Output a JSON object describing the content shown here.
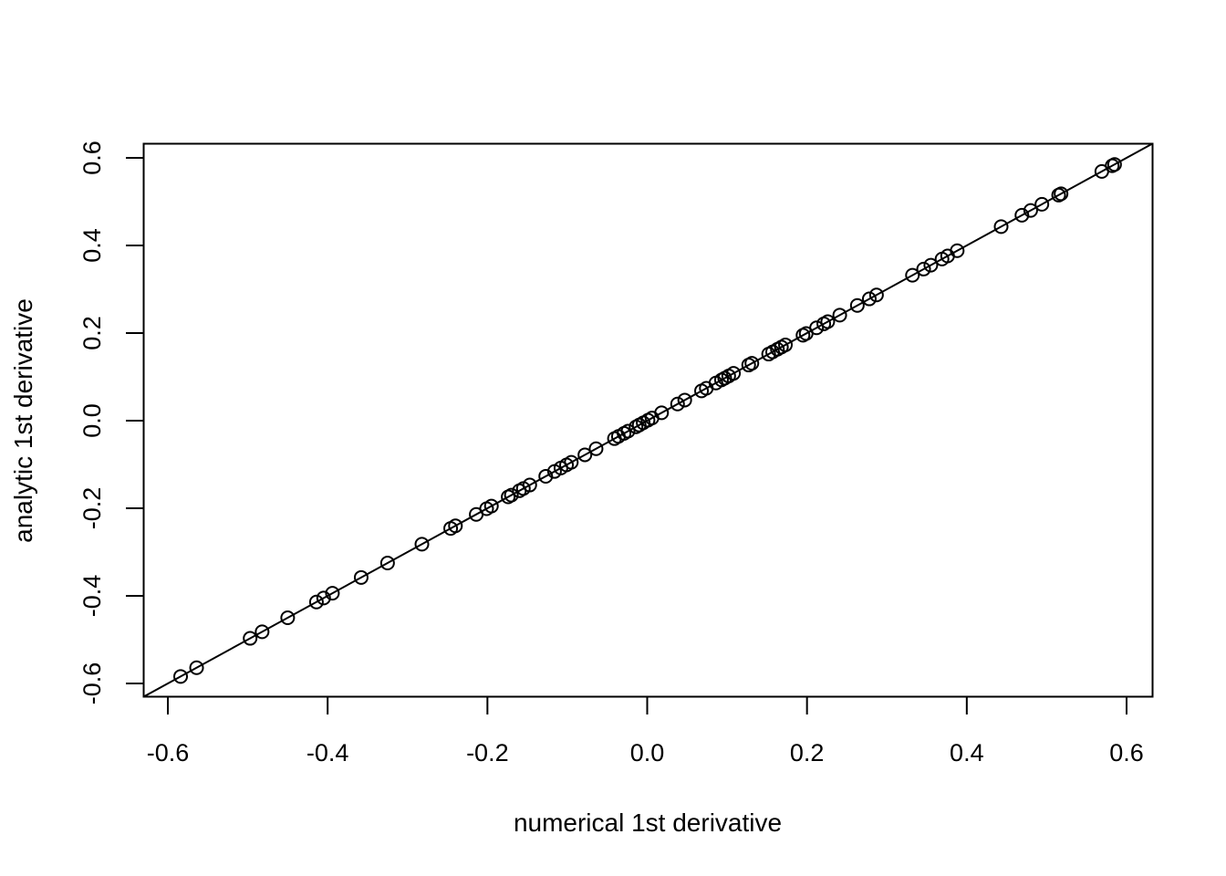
{
  "chart_data": {
    "type": "scatter",
    "title": "",
    "xlabel": "numerical 1st derivative",
    "ylabel": "analytic 1st derivative",
    "xlim": [
      -0.6,
      0.6
    ],
    "ylim": [
      -0.6,
      0.6
    ],
    "x_ticks": [
      -0.6,
      -0.4,
      -0.2,
      0.0,
      0.2,
      0.4,
      0.6
    ],
    "y_ticks": [
      -0.6,
      -0.4,
      -0.2,
      0.0,
      0.2,
      0.4,
      0.6
    ],
    "x_tick_labels": [
      "-0.6",
      "-0.4",
      "-0.2",
      "0.0",
      "0.2",
      "0.4",
      "0.6"
    ],
    "y_tick_labels": [
      "-0.6",
      "-0.4",
      "-0.2",
      "0.0",
      "0.2",
      "0.4",
      "0.6"
    ],
    "reference_line": {
      "intercept": 0,
      "slope": 1
    },
    "grid": false,
    "legend": "none",
    "point_style": "open-circle",
    "colors": {
      "points": "#000000",
      "line": "#000000",
      "box": "#000000"
    },
    "points": [
      {
        "x": -0.584,
        "y": -0.584
      },
      {
        "x": -0.564,
        "y": -0.564
      },
      {
        "x": -0.497,
        "y": -0.497
      },
      {
        "x": -0.482,
        "y": -0.482
      },
      {
        "x": -0.45,
        "y": -0.45
      },
      {
        "x": -0.414,
        "y": -0.414
      },
      {
        "x": -0.405,
        "y": -0.405
      },
      {
        "x": -0.394,
        "y": -0.394
      },
      {
        "x": -0.358,
        "y": -0.358
      },
      {
        "x": -0.325,
        "y": -0.325
      },
      {
        "x": -0.282,
        "y": -0.282
      },
      {
        "x": -0.246,
        "y": -0.246
      },
      {
        "x": -0.24,
        "y": -0.24
      },
      {
        "x": -0.214,
        "y": -0.214
      },
      {
        "x": -0.201,
        "y": -0.201
      },
      {
        "x": -0.195,
        "y": -0.195
      },
      {
        "x": -0.174,
        "y": -0.174
      },
      {
        "x": -0.17,
        "y": -0.17
      },
      {
        "x": -0.16,
        "y": -0.16
      },
      {
        "x": -0.155,
        "y": -0.155
      },
      {
        "x": -0.147,
        "y": -0.147
      },
      {
        "x": -0.127,
        "y": -0.127
      },
      {
        "x": -0.116,
        "y": -0.116
      },
      {
        "x": -0.108,
        "y": -0.108
      },
      {
        "x": -0.101,
        "y": -0.101
      },
      {
        "x": -0.095,
        "y": -0.095
      },
      {
        "x": -0.078,
        "y": -0.078
      },
      {
        "x": -0.064,
        "y": -0.064
      },
      {
        "x": -0.041,
        "y": -0.041
      },
      {
        "x": -0.036,
        "y": -0.036
      },
      {
        "x": -0.029,
        "y": -0.029
      },
      {
        "x": -0.024,
        "y": -0.024
      },
      {
        "x": -0.014,
        "y": -0.014
      },
      {
        "x": -0.01,
        "y": -0.01
      },
      {
        "x": -0.005,
        "y": -0.005
      },
      {
        "x": 0.001,
        "y": 0.001
      },
      {
        "x": 0.006,
        "y": 0.006
      },
      {
        "x": 0.018,
        "y": 0.018
      },
      {
        "x": 0.038,
        "y": 0.038
      },
      {
        "x": 0.047,
        "y": 0.047
      },
      {
        "x": 0.068,
        "y": 0.068
      },
      {
        "x": 0.074,
        "y": 0.074
      },
      {
        "x": 0.086,
        "y": 0.086
      },
      {
        "x": 0.093,
        "y": 0.093
      },
      {
        "x": 0.097,
        "y": 0.097
      },
      {
        "x": 0.102,
        "y": 0.102
      },
      {
        "x": 0.108,
        "y": 0.108
      },
      {
        "x": 0.127,
        "y": 0.127
      },
      {
        "x": 0.131,
        "y": 0.131
      },
      {
        "x": 0.152,
        "y": 0.152
      },
      {
        "x": 0.157,
        "y": 0.157
      },
      {
        "x": 0.163,
        "y": 0.163
      },
      {
        "x": 0.168,
        "y": 0.168
      },
      {
        "x": 0.173,
        "y": 0.173
      },
      {
        "x": 0.195,
        "y": 0.195
      },
      {
        "x": 0.199,
        "y": 0.199
      },
      {
        "x": 0.212,
        "y": 0.212
      },
      {
        "x": 0.221,
        "y": 0.221
      },
      {
        "x": 0.226,
        "y": 0.226
      },
      {
        "x": 0.241,
        "y": 0.241
      },
      {
        "x": 0.263,
        "y": 0.263
      },
      {
        "x": 0.278,
        "y": 0.278
      },
      {
        "x": 0.287,
        "y": 0.287
      },
      {
        "x": 0.332,
        "y": 0.332
      },
      {
        "x": 0.346,
        "y": 0.346
      },
      {
        "x": 0.355,
        "y": 0.355
      },
      {
        "x": 0.369,
        "y": 0.369
      },
      {
        "x": 0.376,
        "y": 0.376
      },
      {
        "x": 0.388,
        "y": 0.388
      },
      {
        "x": 0.443,
        "y": 0.443
      },
      {
        "x": 0.469,
        "y": 0.469
      },
      {
        "x": 0.48,
        "y": 0.48
      },
      {
        "x": 0.494,
        "y": 0.494
      },
      {
        "x": 0.515,
        "y": 0.515
      },
      {
        "x": 0.518,
        "y": 0.518
      },
      {
        "x": 0.569,
        "y": 0.569
      },
      {
        "x": 0.582,
        "y": 0.582
      },
      {
        "x": 0.585,
        "y": 0.585
      }
    ]
  }
}
